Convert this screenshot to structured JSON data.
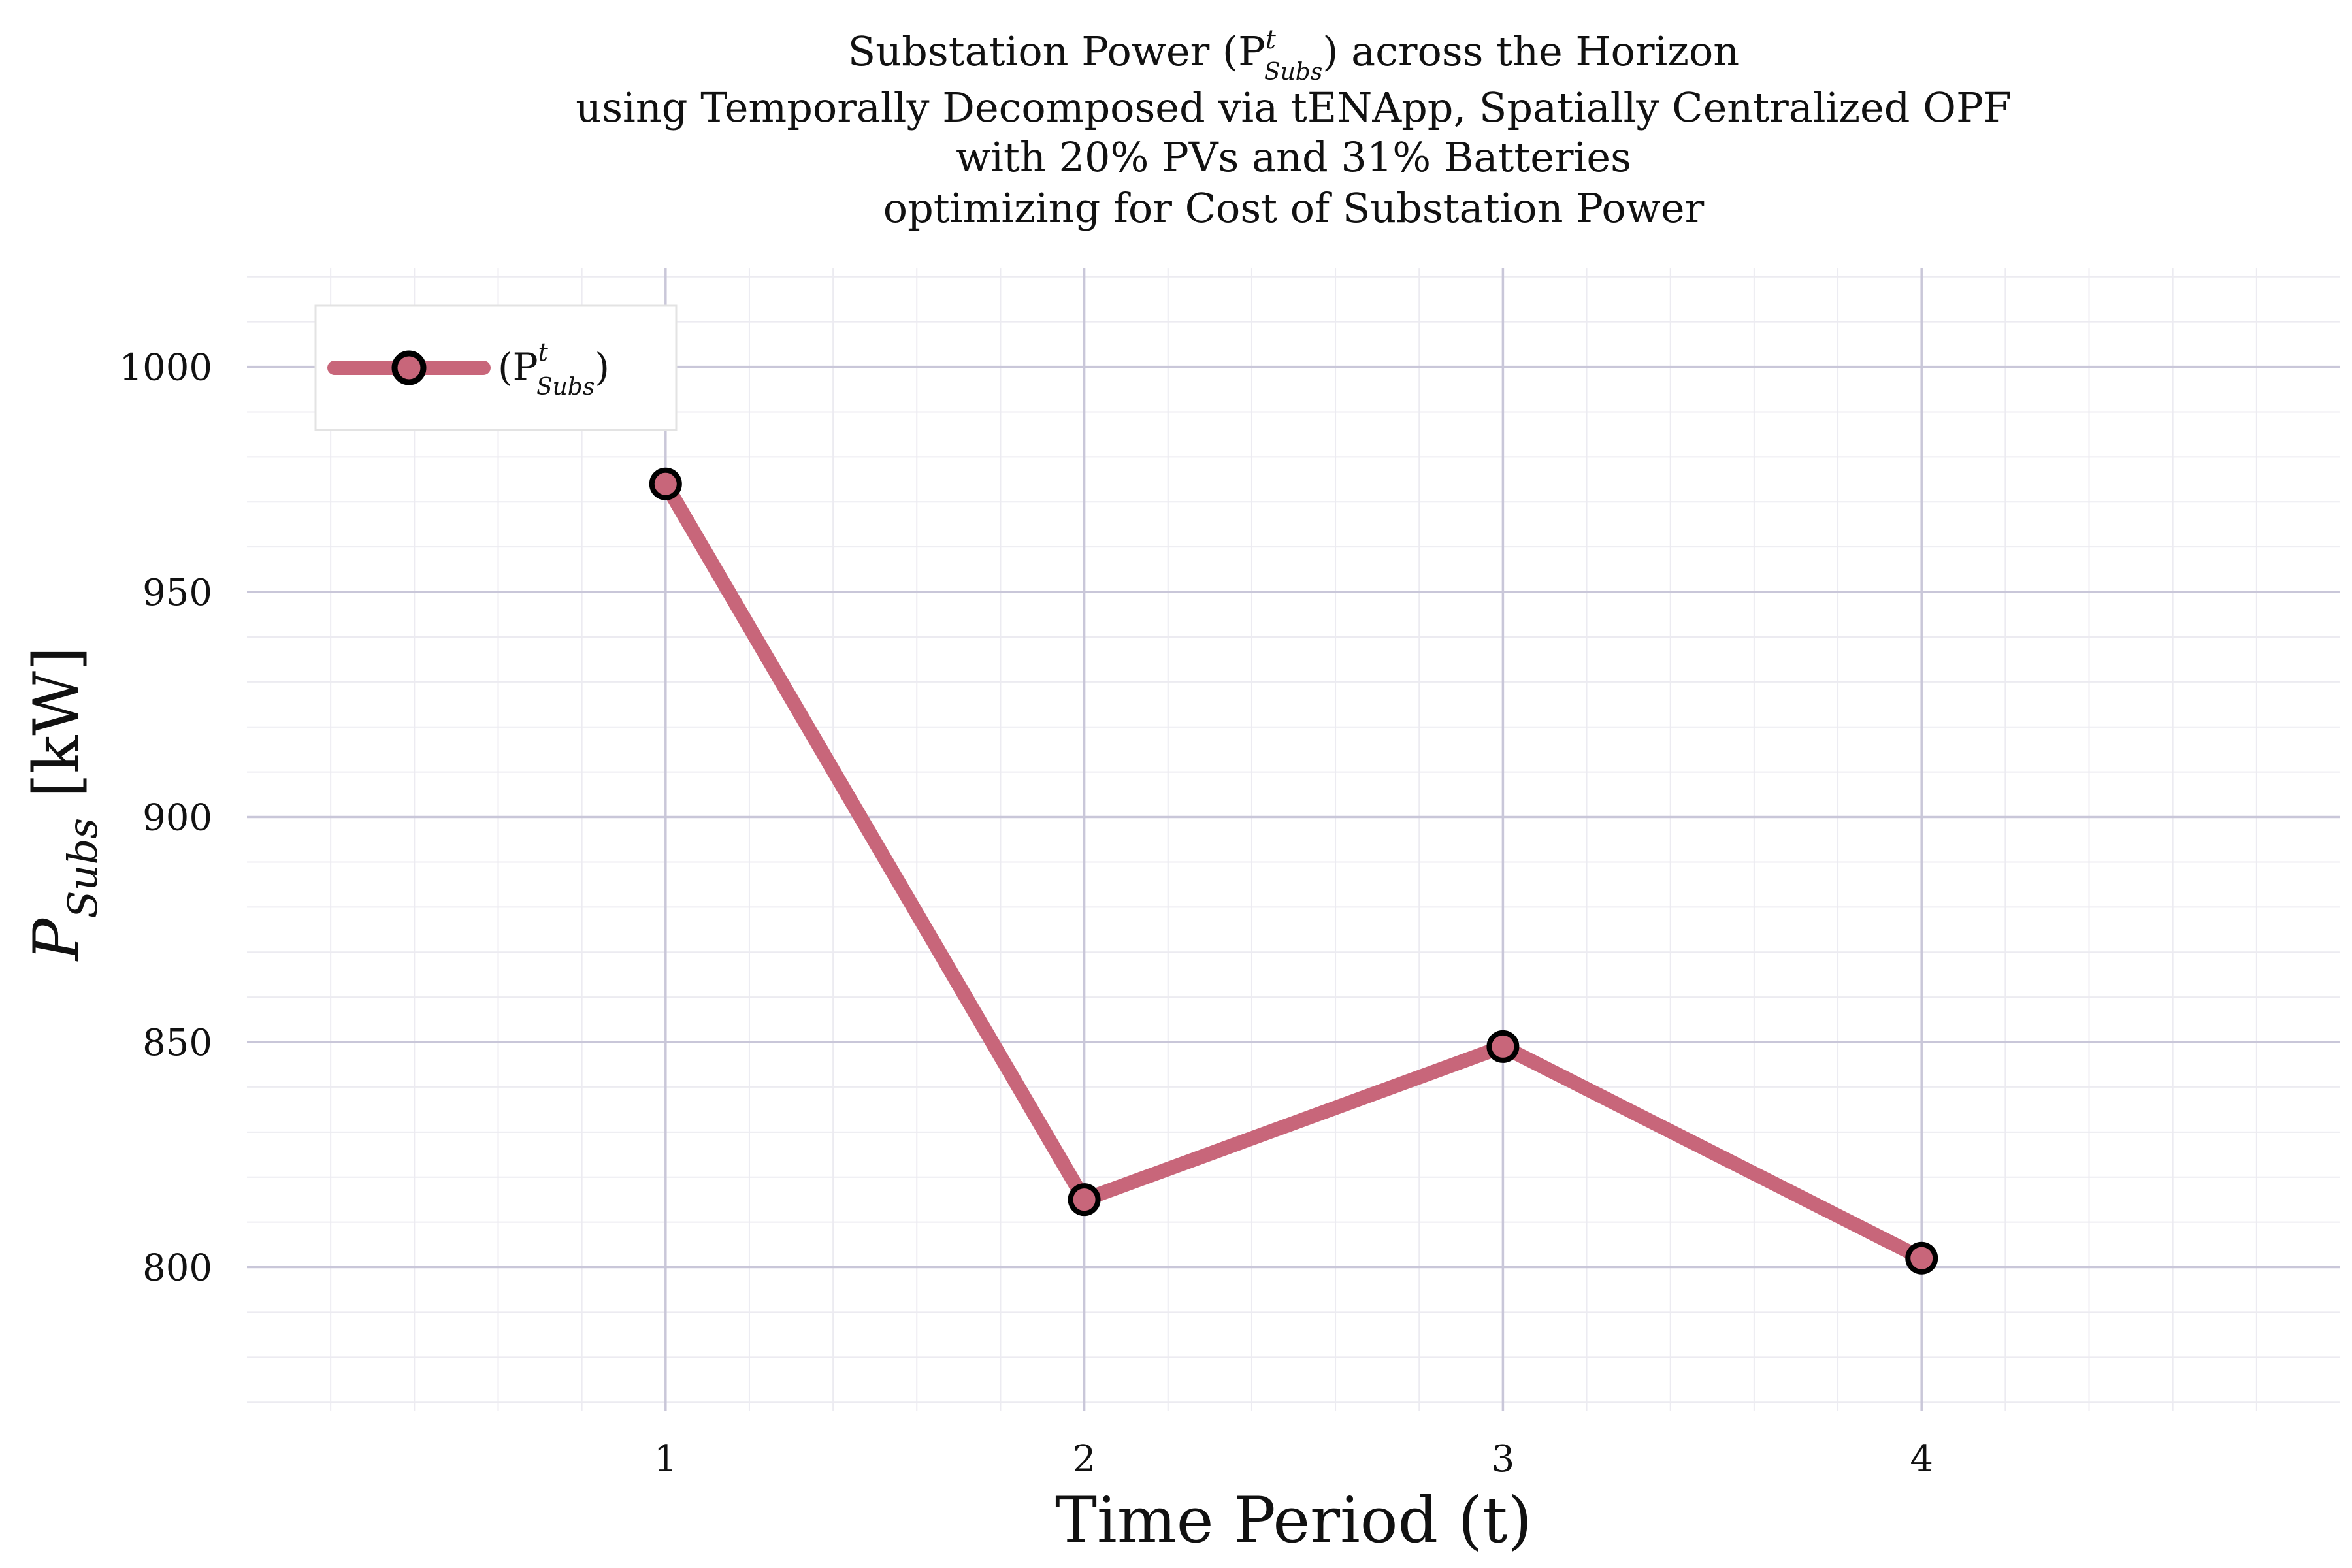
{
  "chart_data": {
    "type": "line",
    "title": {
      "lines": [
        {
          "main": "Substation Power (P",
          "sup": "t",
          "sub": "Subs",
          "tail": ") across the Horizon"
        },
        {
          "text": "using Temporally Decomposed via tENApp, Spatially Centralized OPF"
        },
        {
          "text": "with 20% PVs and 31% Batteries"
        },
        {
          "text": "optimizing for Cost of Substation Power"
        }
      ]
    },
    "xlabel": "Time Period (t)",
    "ylabel": {
      "main": "P",
      "sub": "Subs",
      "tail": " [kW]"
    },
    "x": [
      1,
      2,
      3,
      4
    ],
    "series": [
      {
        "legend": {
          "open": "(P",
          "sup": "t",
          "sub": "Subs",
          "close": ")"
        },
        "values": [
          974,
          815,
          849,
          802
        ],
        "color": "#c8667a",
        "marker_edge": "#000000"
      }
    ],
    "xlim": [
      0,
      5
    ],
    "ylim": [
      768,
      1022
    ],
    "xticks": [
      "1",
      "2",
      "3",
      "4"
    ],
    "yticks": [
      "800",
      "850",
      "900",
      "950",
      "1000"
    ],
    "grid": true,
    "legend_position": "top-left",
    "colors": {
      "major_grid": "#c9c7d9",
      "minor_grid": "#ecebf1",
      "line": "#c8667a",
      "legend_border": "#e3e3e3"
    }
  }
}
